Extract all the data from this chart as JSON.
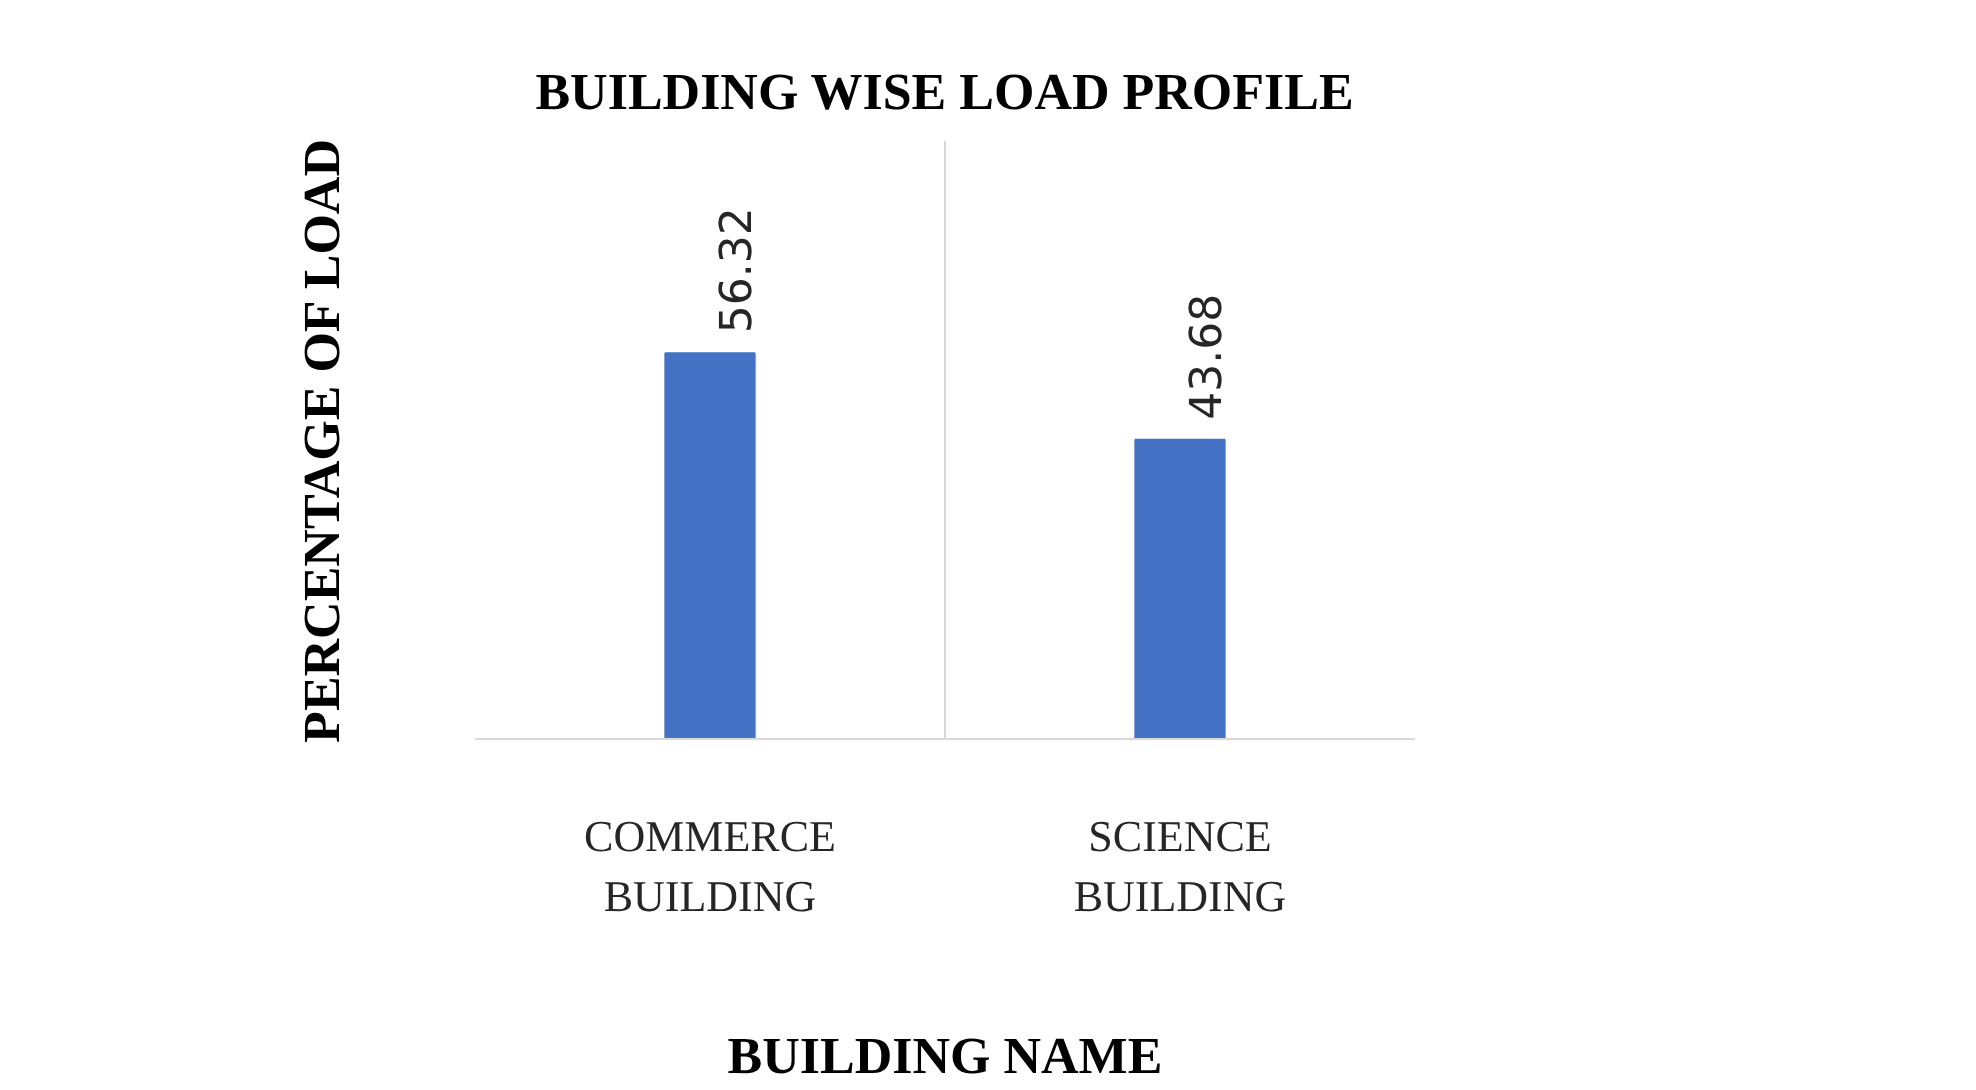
{
  "chart_data": {
    "type": "bar",
    "title": "BUILDING WISE LOAD PROFILE",
    "xlabel": "BUILDING NAME",
    "ylabel": "PERCENTAGE OF LOAD",
    "categories": [
      "COMMERCE\nBUILDING",
      "SCIENCE\nBUILDING"
    ],
    "values": [
      56.32,
      43.68
    ],
    "color": "#4472c4",
    "data_labels": true,
    "grid": "x"
  }
}
